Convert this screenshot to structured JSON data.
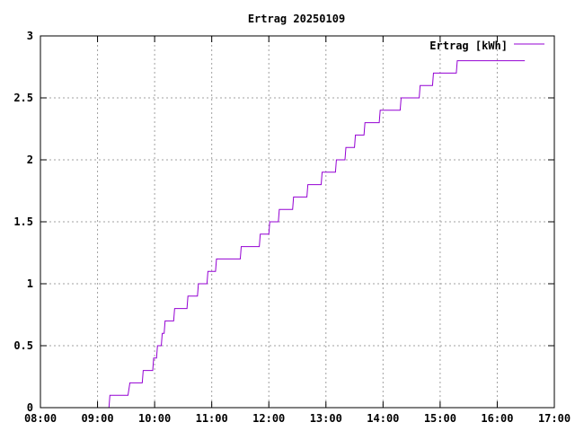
{
  "chart_data": {
    "type": "line",
    "step": true,
    "title": "Ertrag 20250109",
    "xlabel": "",
    "ylabel": "",
    "xlim": [
      "08:00",
      "17:00"
    ],
    "ylim": [
      0,
      3
    ],
    "x_ticks": [
      "08:00",
      "09:00",
      "10:00",
      "11:00",
      "12:00",
      "13:00",
      "14:00",
      "15:00",
      "16:00",
      "17:00"
    ],
    "y_ticks": [
      "0",
      "0.5",
      "1",
      "1.5",
      "2",
      "2.5",
      "3"
    ],
    "y_tick_values": [
      0,
      0.5,
      1,
      1.5,
      2,
      2.5,
      3
    ],
    "grid": true,
    "legend_position": "top-right",
    "series": [
      {
        "name": "Ertrag [kWh]",
        "color": "#9400d3",
        "x": [
          "09:12",
          "09:13",
          "09:32",
          "09:34",
          "09:47",
          "09:48",
          "09:58",
          "09:59",
          "10:02",
          "10:03",
          "10:07",
          "10:08",
          "10:10",
          "10:11",
          "10:20",
          "10:21",
          "10:34",
          "10:35",
          "10:45",
          "10:46",
          "10:55",
          "10:56",
          "11:04",
          "11:05",
          "11:30",
          "11:31",
          "11:50",
          "11:51",
          "12:00",
          "12:01",
          "12:10",
          "12:11",
          "12:25",
          "12:26",
          "12:40",
          "12:41",
          "12:55",
          "12:56",
          "13:10",
          "13:11",
          "13:20",
          "13:21",
          "13:30",
          "13:31",
          "13:40",
          "13:41",
          "13:56",
          "13:57",
          "14:18",
          "14:19",
          "14:38",
          "14:39",
          "14:52",
          "14:53",
          "15:17",
          "15:18",
          "15:53",
          "15:54",
          "16:29"
        ],
        "values": [
          0,
          0.1,
          0.1,
          0.2,
          0.2,
          0.3,
          0.3,
          0.4,
          0.4,
          0.5,
          0.5,
          0.6,
          0.6,
          0.7,
          0.7,
          0.8,
          0.8,
          0.9,
          0.9,
          1.0,
          1.0,
          1.1,
          1.1,
          1.2,
          1.2,
          1.3,
          1.3,
          1.4,
          1.4,
          1.5,
          1.5,
          1.6,
          1.6,
          1.7,
          1.7,
          1.8,
          1.8,
          1.9,
          1.9,
          2.0,
          2.0,
          2.1,
          2.1,
          2.2,
          2.2,
          2.3,
          2.3,
          2.4,
          2.4,
          2.5,
          2.5,
          2.6,
          2.6,
          2.7,
          2.7,
          2.8,
          2.8,
          2.8,
          2.8
        ]
      }
    ]
  }
}
